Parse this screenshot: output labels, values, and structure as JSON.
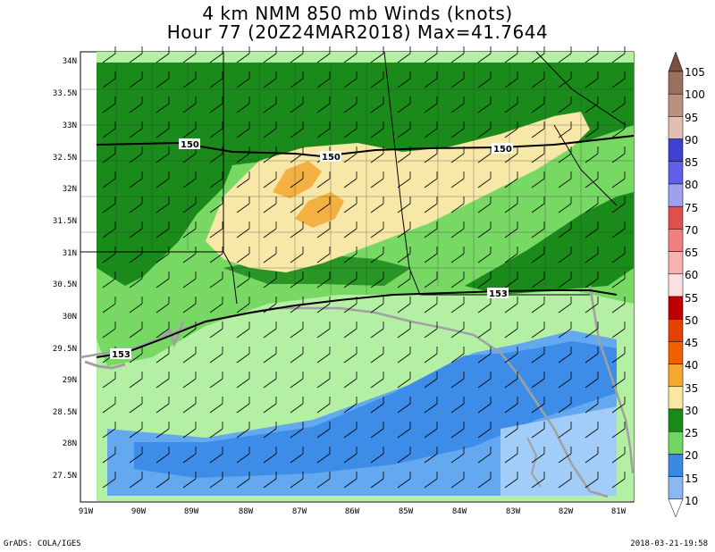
{
  "title_line1": "4 km NMM 850 mb Winds (knots)",
  "title_line2": "Hour 77 (20Z24MAR2018) Max=41.7644",
  "footer_left": "GrADS: COLA/IGES",
  "footer_right": "2018-03-21-19:58",
  "contour_labels": [
    "150",
    "150",
    "150",
    "153",
    "153"
  ],
  "y_ticks": [
    "34N",
    "33.5N",
    "33N",
    "32.5N",
    "32N",
    "31.5N",
    "31N",
    "30.5N",
    "30N",
    "29.5N",
    "29N",
    "28.5N",
    "28N",
    "27.5N"
  ],
  "x_ticks": [
    "91W",
    "90W",
    "89W",
    "88W",
    "87W",
    "86W",
    "85W",
    "84W",
    "83W",
    "82W",
    "81W"
  ],
  "colorbar": {
    "labels": [
      "105",
      "100",
      "95",
      "90",
      "85",
      "80",
      "75",
      "70",
      "65",
      "60",
      "55",
      "50",
      "45",
      "40",
      "35",
      "30",
      "25",
      "20",
      "15",
      "10"
    ],
    "colors": [
      "#7a5040",
      "#9c7060",
      "#bc9080",
      "#e0c0b0",
      "#4040d0",
      "#6060e8",
      "#a0a0f0",
      "#e05050",
      "#f08080",
      "#f8b0b0",
      "#fae0e0",
      "#c00000",
      "#e84000",
      "#f06000",
      "#f4a830",
      "#f8e8a0",
      "#1a8a1a",
      "#70d860",
      "#3a8ae0",
      "#8ab8f0"
    ],
    "bottom_color": "#ffffff"
  },
  "wind_colors": {
    "fill_10_15": "#a8d0f8",
    "fill_15_20": "#64a8f0",
    "fill_20_25": "#3c8ce8",
    "fill_25_30": "#b4f0a4",
    "fill_30_35": "#78d864",
    "fill_35_40": "#1a8a1a",
    "fill_40_45": "#f8e8a8",
    "fill_45_50": "#f4b040"
  }
}
